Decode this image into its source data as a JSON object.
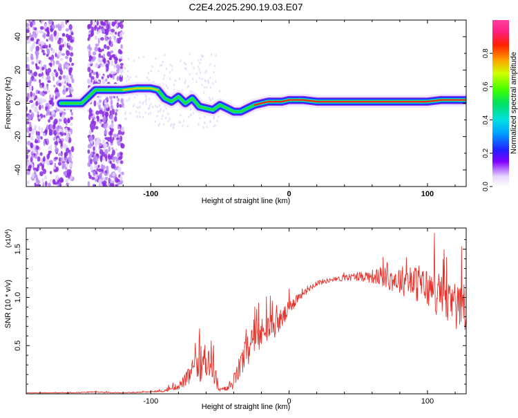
{
  "title": "C2E4.2025.290.19.03.E07",
  "chart_data": [
    {
      "type": "heatmap",
      "name": "spectrogram",
      "xlabel": "Height of straight line (km)",
      "ylabel": "Frequency (Hz)",
      "xlim": [
        -190,
        128
      ],
      "ylim": [
        -50,
        50
      ],
      "xticks": [
        -100,
        0,
        100
      ],
      "xtick_labels": [
        "-100",
        "0",
        "100"
      ],
      "yticks": [
        -40,
        -20,
        0,
        20,
        40
      ],
      "ytick_labels": [
        "-40",
        "-20",
        "0",
        "20",
        "40"
      ],
      "ridge": {
        "x": [
          -165,
          -160,
          -150,
          -140,
          -130,
          -120,
          -110,
          -100,
          -95,
          -90,
          -85,
          -80,
          -75,
          -70,
          -65,
          -60,
          -55,
          -50,
          -45,
          -40,
          -35,
          -30,
          -25,
          -20,
          -15,
          -10,
          -5,
          0,
          5,
          10,
          20,
          40,
          60,
          80,
          100,
          110,
          120,
          128
        ],
        "y": [
          0,
          0,
          0,
          8,
          8,
          8,
          9,
          9,
          8,
          3,
          1,
          4,
          0,
          3,
          -2,
          -3,
          -4,
          -1,
          -3,
          -5,
          -5,
          -3,
          -1,
          0,
          1,
          1,
          1,
          2,
          2,
          2,
          1,
          1,
          1,
          1,
          1,
          2,
          2,
          2
        ]
      },
      "colorbar": {
        "label": "Normalized spectral amplitude",
        "range": [
          0,
          1
        ],
        "ticks": [
          0.0,
          0.2,
          0.4,
          0.6,
          0.8
        ],
        "tick_labels": [
          "0.0",
          "0.2",
          "0.4",
          "0.6",
          "0.8"
        ]
      }
    },
    {
      "type": "line",
      "name": "snr",
      "xlabel": "Height of straight line (km)",
      "ylabel": "SNR (10 * v/v)",
      "scale_label": "(x10",
      "scale_exp": "4",
      "scale_close": ")",
      "xlim": [
        -190,
        128
      ],
      "ylim": [
        0,
        1.72
      ],
      "xticks": [
        -100,
        0,
        100
      ],
      "xtick_labels": [
        "-100",
        "0",
        "100"
      ],
      "yticks": [
        0.5,
        1.0,
        1.5
      ],
      "ytick_labels": [
        "0.5",
        "1.0",
        "1.5"
      ],
      "color": "#e8312a",
      "envelope": {
        "x": [
          -190,
          -160,
          -140,
          -120,
          -100,
          -90,
          -80,
          -75,
          -70,
          -65,
          -60,
          -55,
          -52,
          -50,
          -45,
          -40,
          -35,
          -30,
          -25,
          -20,
          -15,
          -10,
          -5,
          0,
          5,
          10,
          15,
          20,
          30,
          40,
          50,
          60,
          70,
          80,
          90,
          100,
          110,
          120,
          128
        ],
        "base": [
          0.01,
          0.01,
          0.02,
          0.01,
          0.02,
          0.03,
          0.08,
          0.14,
          0.22,
          0.3,
          0.35,
          0.35,
          0.1,
          0.04,
          0.05,
          0.12,
          0.3,
          0.45,
          0.55,
          0.62,
          0.68,
          0.72,
          0.78,
          0.88,
          0.98,
          1.05,
          1.1,
          1.15,
          1.18,
          1.2,
          1.22,
          1.22,
          1.2,
          1.18,
          1.15,
          1.1,
          1.0,
          0.9,
          0.85
        ],
        "amp": [
          0.004,
          0.005,
          0.01,
          0.005,
          0.01,
          0.02,
          0.06,
          0.12,
          0.2,
          0.3,
          0.35,
          0.38,
          0.15,
          0.03,
          0.05,
          0.12,
          0.22,
          0.3,
          0.3,
          0.28,
          0.25,
          0.22,
          0.18,
          0.14,
          0.1,
          0.08,
          0.06,
          0.05,
          0.04,
          0.05,
          0.08,
          0.12,
          0.18,
          0.25,
          0.3,
          0.35,
          0.38,
          0.4,
          0.42
        ]
      }
    }
  ]
}
